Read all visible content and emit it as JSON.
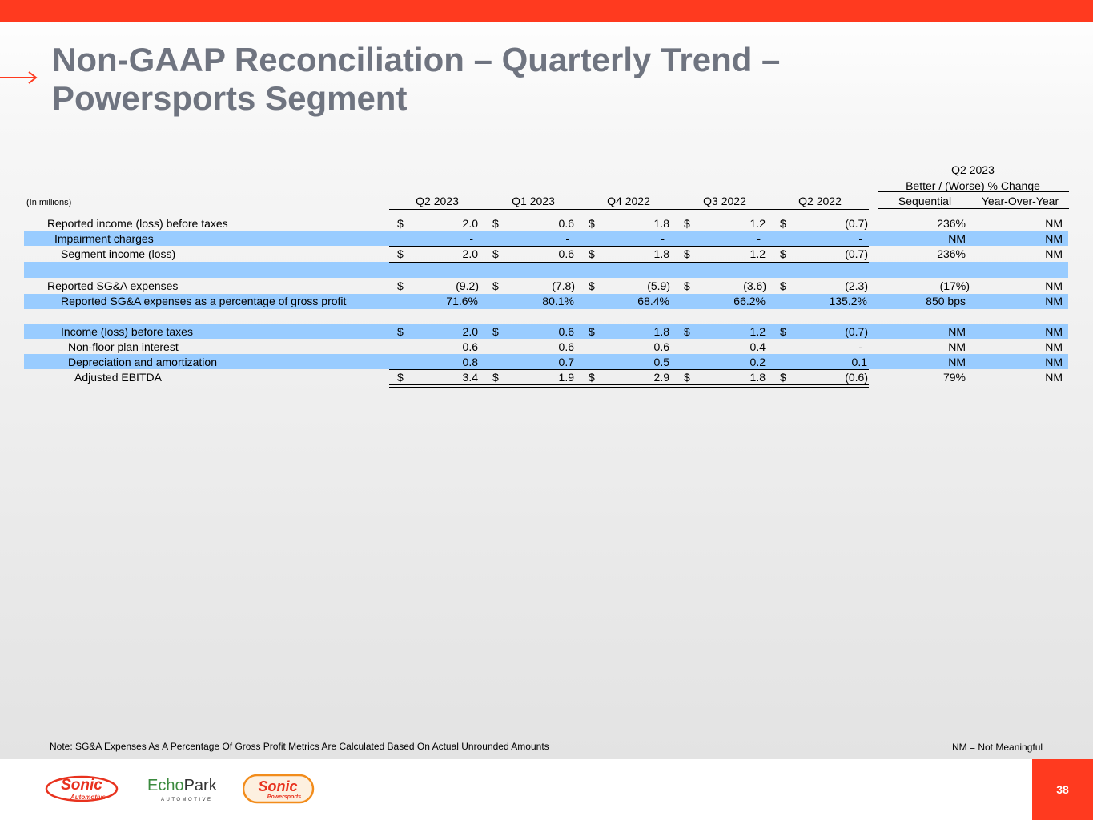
{
  "slide": {
    "title_line1": "Non-GAAP Reconciliation – Quarterly Trend –",
    "title_line2": "Powersports Segment",
    "page_number": "38",
    "accent_color": "#ff3a1f",
    "band_color": "#99ccff"
  },
  "table": {
    "units_label": "(In millions)",
    "group_header_line1": "Q2 2023",
    "group_header_line2": "Better / (Worse) % Change",
    "columns": [
      "Q2 2023",
      "Q1 2023",
      "Q4 2022",
      "Q3 2022",
      "Q2 2022"
    ],
    "change_columns": [
      "Sequential",
      "Year-Over-Year"
    ],
    "rows": [
      {
        "label": "Reported income (loss) before taxes",
        "values": [
          "2.0",
          "0.6",
          "1.8",
          "1.2",
          "(0.7)"
        ],
        "dollar": true,
        "seq": "236%",
        "yoy": "NM"
      },
      {
        "label": "Impairment charges",
        "values": [
          "-",
          "-",
          "-",
          "-",
          "-"
        ],
        "dollar": false,
        "seq": "NM",
        "yoy": "NM"
      },
      {
        "label": "Segment income (loss)",
        "values": [
          "2.0",
          "0.6",
          "1.8",
          "1.2",
          "(0.7)"
        ],
        "dollar": true,
        "seq": "236%",
        "yoy": "NM"
      },
      {
        "label": "Reported SG&A expenses",
        "values": [
          "(9.2)",
          "(7.8)",
          "(5.9)",
          "(3.6)",
          "(2.3)"
        ],
        "dollar": true,
        "seq": "(17%)",
        "yoy": "NM"
      },
      {
        "label": "Reported SG&A expenses as a percentage of gross profit",
        "values": [
          "71.6%",
          "80.1%",
          "68.4%",
          "66.2%",
          "135.2%"
        ],
        "dollar": false,
        "seq": "850 bps",
        "yoy": "NM"
      },
      {
        "label": "Income (loss) before taxes",
        "values": [
          "2.0",
          "0.6",
          "1.8",
          "1.2",
          "(0.7)"
        ],
        "dollar": true,
        "seq": "NM",
        "yoy": "NM"
      },
      {
        "label": "Non-floor plan interest",
        "values": [
          "0.6",
          "0.6",
          "0.6",
          "0.4",
          "-"
        ],
        "dollar": false,
        "seq": "NM",
        "yoy": "NM"
      },
      {
        "label": "Depreciation and amortization",
        "values": [
          "0.8",
          "0.7",
          "0.5",
          "0.2",
          "0.1"
        ],
        "dollar": false,
        "seq": "NM",
        "yoy": "NM"
      },
      {
        "label": "Adjusted EBITDA",
        "values": [
          "3.4",
          "1.9",
          "2.9",
          "1.8",
          "(0.6)"
        ],
        "dollar": true,
        "seq": "79%",
        "yoy": "NM"
      }
    ]
  },
  "footer": {
    "note": "Note: SG&A Expenses As A Percentage Of Gross Profit Metrics Are Calculated Based On Actual Unrounded Amounts",
    "nm_legend": "NM = Not Meaningful",
    "logo1_text": "Sonic",
    "logo1_sub": "Automotive",
    "logo2_text_a": "Echo",
    "logo2_text_b": "Park",
    "logo2_sub": "AUTOMOTIVE",
    "logo3_text": "Sonic",
    "logo3_sub": "Powersports"
  }
}
